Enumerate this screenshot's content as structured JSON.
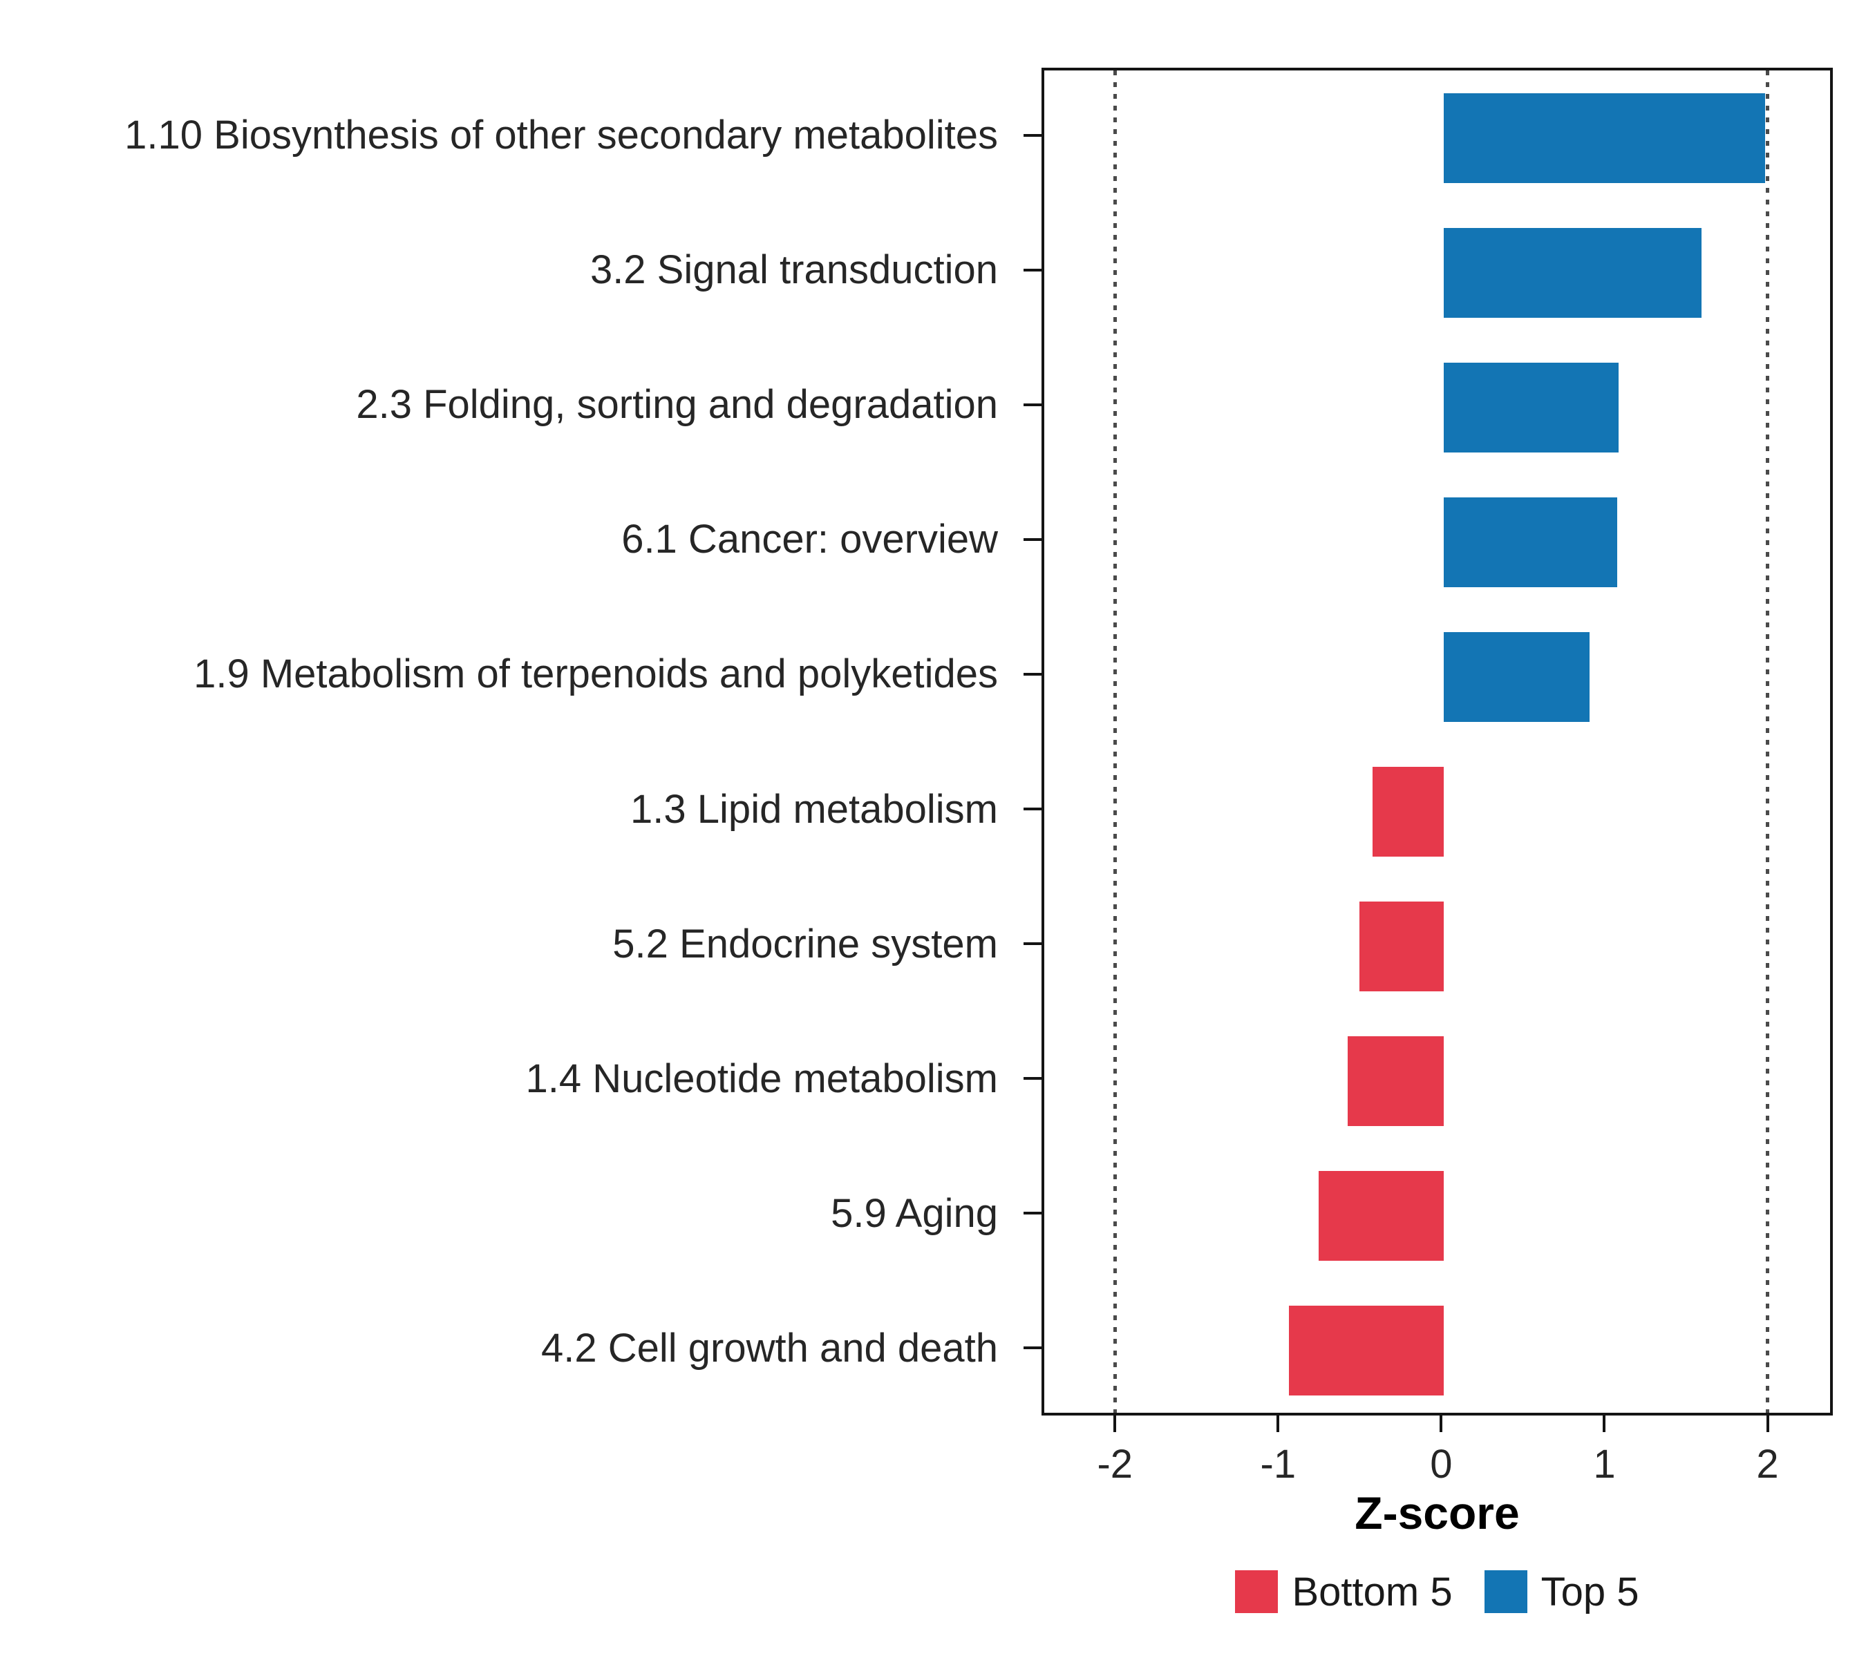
{
  "chart_data": {
    "type": "bar",
    "orientation": "horizontal",
    "title": "",
    "xlabel": "Z-score",
    "ylabel": "",
    "xlim": [
      -2.45,
      2.4
    ],
    "xticks": [
      -2,
      -1,
      0,
      1,
      2
    ],
    "reference_lines": [
      -2,
      2
    ],
    "grid": "off",
    "legend_position": "bottom",
    "series": [
      {
        "name": "Bottom 5",
        "color": "#E6394B"
      },
      {
        "name": "Top 5",
        "color": "#1375B4"
      }
    ],
    "bars": [
      {
        "category": "1.10 Biosynthesis of other secondary metabolites",
        "value": 1.97,
        "group": "Top 5"
      },
      {
        "category": "3.2 Signal transduction",
        "value": 1.58,
        "group": "Top 5"
      },
      {
        "category": "2.3 Folding, sorting and degradation",
        "value": 1.07,
        "group": "Top 5"
      },
      {
        "category": "6.1 Cancer: overview",
        "value": 1.06,
        "group": "Top 5"
      },
      {
        "category": "1.9 Metabolism of terpenoids and polyketides",
        "value": 0.89,
        "group": "Top 5"
      },
      {
        "category": "1.3 Lipid metabolism",
        "value": -0.44,
        "group": "Bottom 5"
      },
      {
        "category": "5.2 Endocrine system",
        "value": -0.52,
        "group": "Bottom 5"
      },
      {
        "category": "1.4 Nucleotide metabolism",
        "value": -0.59,
        "group": "Bottom 5"
      },
      {
        "category": "5.9 Aging",
        "value": -0.77,
        "group": "Bottom 5"
      },
      {
        "category": "4.2 Cell growth and death",
        "value": -0.95,
        "group": "Bottom 5"
      }
    ],
    "colors": {
      "panel_border": "#141414",
      "axis_text": "#262626",
      "reference_line": "#4a4a4a",
      "background": "#ffffff"
    }
  }
}
